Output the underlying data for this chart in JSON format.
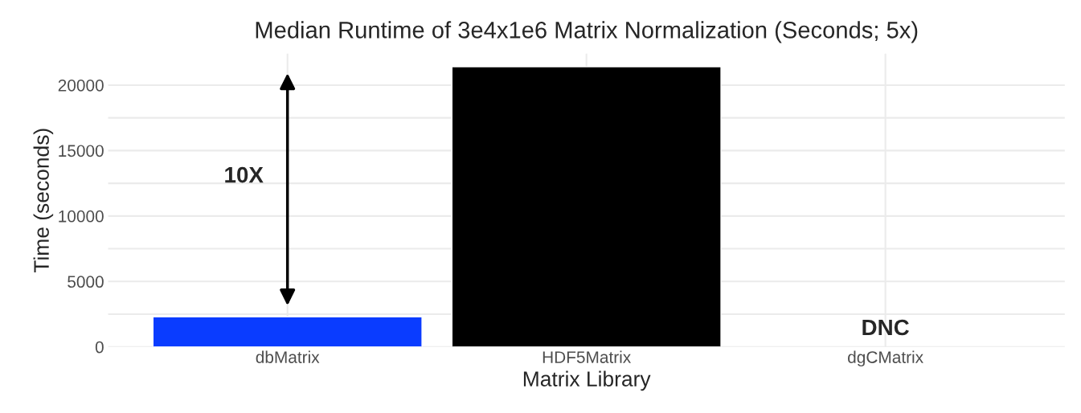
{
  "chart_data": {
    "type": "bar",
    "title": "Median Runtime of 3e4x1e6 Matrix Normalization (Seconds; 5x)",
    "xlabel": "Matrix Library",
    "ylabel": "Time (seconds)",
    "categories": [
      "dbMatrix",
      "HDF5Matrix",
      "dgCMatrix"
    ],
    "values": [
      2300,
      21400,
      null
    ],
    "colors": [
      "#0a3cff",
      "#000000",
      "#000000"
    ],
    "ylim": [
      0,
      22400
    ],
    "yticks": [
      0,
      {
        "value": 2500,
        "label": null
      },
      5000,
      {
        "value": 7500,
        "label": null
      },
      10000,
      {
        "value": 12500,
        "label": null
      },
      15000,
      {
        "value": 17500,
        "label": null
      },
      20000
    ],
    "grid": true,
    "annotations": [
      "10X",
      "DNC"
    ]
  }
}
